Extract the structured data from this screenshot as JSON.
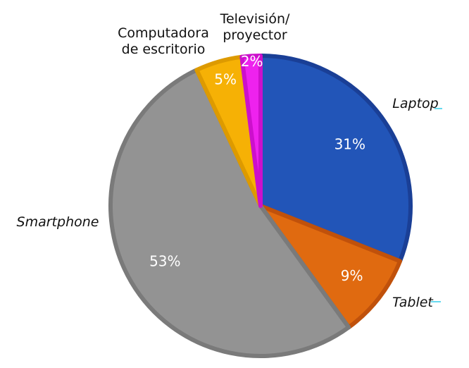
{
  "chart_data": {
    "type": "pie",
    "title": "",
    "slices": [
      {
        "key": "laptop",
        "label": "Laptop",
        "label_lines": [
          "Laptop"
        ],
        "italic": true,
        "value": 31,
        "value_label": "31%",
        "color": "#2255b8",
        "edge": "#1a3f96"
      },
      {
        "key": "tablet",
        "label": "Tablet",
        "label_lines": [
          "Tablet"
        ],
        "italic": true,
        "value": 9,
        "value_label": "9%",
        "color": "#e06a10",
        "edge": "#c0510b"
      },
      {
        "key": "smartphone",
        "label": "Smartphone",
        "label_lines": [
          "Smartphone"
        ],
        "italic": true,
        "value": 53,
        "value_label": "53%",
        "color": "#939393",
        "edge": "#7a7a7a"
      },
      {
        "key": "computadora-de-escritorio",
        "label": "Computadora de escritorio",
        "label_lines": [
          "Computadora",
          "de escritorio"
        ],
        "italic": false,
        "value": 5,
        "value_label": "5%",
        "color": "#f6b105",
        "edge": "#dd9a00"
      },
      {
        "key": "television-proyector",
        "label": "Televisión/ proyector",
        "label_lines": [
          "Televisión/",
          "proyector"
        ],
        "italic": false,
        "value": 2,
        "value_label": "2%",
        "color": "#ee22ee",
        "edge": "#cc10cc"
      }
    ]
  }
}
